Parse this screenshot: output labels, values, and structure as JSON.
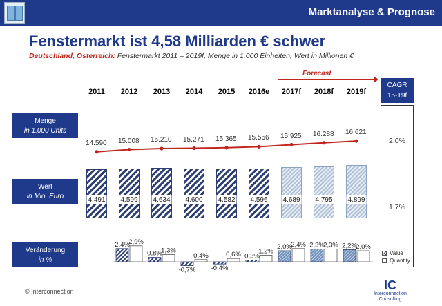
{
  "header": {
    "title": "Marktanalyse & Prognose"
  },
  "page": {
    "title": "Fenstermarkt ist 4,58 Milliarden € schwer",
    "subtitle_red": "Deutschland, Österreich:",
    "subtitle_rest": " Fenstermarkt 2011 – 2019f, Menge in 1.000 Einheiten, Wert in Millionen €"
  },
  "forecast_label": "Forecast",
  "row_labels": {
    "menge_title": "Menge",
    "menge_unit": "in 1.000 Units",
    "wert_title": "Wert",
    "wert_unit": "in Mio. Euro",
    "change_title": "Veränderung",
    "change_unit": "in %"
  },
  "cagr": {
    "header_line1": "CAGR",
    "header_line2": "15-19f",
    "menge": "2,0%",
    "wert": "1,7%"
  },
  "legend": {
    "value": "Value",
    "quantity": "Quantity"
  },
  "footer": {
    "copyright": "© Interconnection",
    "logo_mark": "IC",
    "logo_line1": "Interconnection",
    "logo_line2": "Consulting"
  },
  "colors": {
    "brand": "#1f3a8a",
    "accent_red": "#c0281f",
    "hist_bar": "#2d3f73",
    "forecast_bar": "#aebfd6"
  },
  "chart_data": {
    "type": "bar",
    "title": "Fenstermarkt 2011 – 2019f",
    "categories": [
      "2011",
      "2012",
      "2013",
      "2014",
      "2015",
      "2016e",
      "2017f",
      "2018f",
      "2019f"
    ],
    "forecast_from_index": 6,
    "menge": {
      "values": [
        14590,
        15008,
        15210,
        15271,
        15365,
        15556,
        15925,
        16288,
        16621
      ],
      "labels": [
        "14.590",
        "15.008",
        "15.210",
        "15.271",
        "15.365",
        "15.556",
        "15.925",
        "16.288",
        "16.621"
      ]
    },
    "wert": {
      "values": [
        4491,
        4599,
        4634,
        4600,
        4582,
        4596,
        4689,
        4795,
        4899
      ],
      "labels": [
        "4.491",
        "4.599",
        "4.634",
        "4.600",
        "4.582",
        "4.596",
        "4.689",
        "4.795",
        "4.899"
      ]
    },
    "change": {
      "value": [
        null,
        2.4,
        0.8,
        -0.7,
        -0.4,
        0.3,
        2.0,
        2.3,
        2.2
      ],
      "value_labels": [
        "",
        "2,4%",
        "0,8%",
        "-0,7%",
        "-0,4%",
        "0,3%",
        "2,0%",
        "2,3%",
        "2,2%"
      ],
      "quantity": [
        null,
        2.9,
        1.3,
        0.4,
        0.6,
        1.2,
        2.4,
        2.3,
        2.0
      ],
      "quantity_labels": [
        "",
        "2,9%",
        "1,3%",
        "0,4%",
        "0,6%",
        "1,2%",
        "2,4%",
        "2,3%",
        "2,0%"
      ]
    }
  }
}
